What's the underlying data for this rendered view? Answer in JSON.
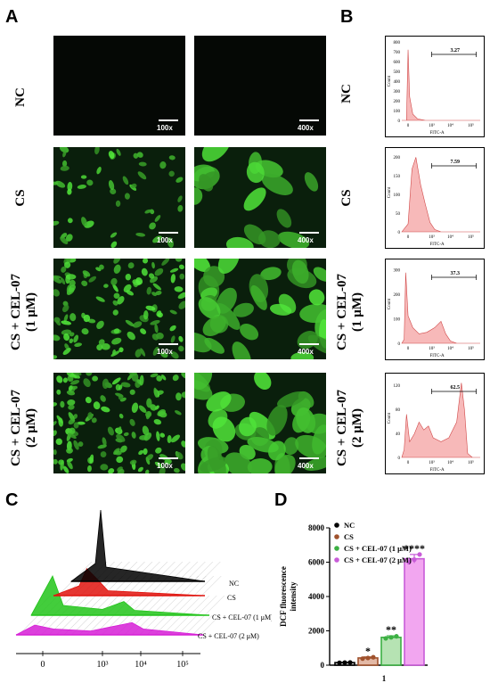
{
  "panels": {
    "a": "A",
    "b": "B",
    "c": "C",
    "d": "D"
  },
  "panel_a": {
    "rows": [
      "NC",
      "CS",
      "CS + CEL-07\n(1 μM)",
      "CS + CEL-07\n(2 μM)"
    ],
    "mag_low": "100x",
    "mag_high": "400x",
    "colors": {
      "fluorescence": "#3fb53a",
      "background": "#07180a"
    }
  },
  "chart_data": [
    {
      "type": "area",
      "title": "",
      "panel": "B",
      "plots": [
        {
          "row": "NC",
          "gate_value": "3.27",
          "ytick_labels": [
            "0",
            "100",
            "200",
            "300",
            "400",
            "500",
            "600",
            "700",
            "800"
          ],
          "ylim": [
            0,
            800
          ],
          "ylabel": "Count",
          "xlabel": "FITC-A",
          "xtick_labels": [
            "0",
            "10³",
            "10⁴",
            "10⁵"
          ],
          "fill": "#f08080"
        },
        {
          "row": "CS",
          "gate_value": "7.59",
          "ytick_labels": [
            "0",
            "50",
            "100",
            "150",
            "200"
          ],
          "ylim": [
            0,
            210
          ],
          "ylabel": "Count",
          "xlabel": "FITC-A",
          "xtick_labels": [
            "0",
            "10³",
            "10⁴",
            "10⁵"
          ],
          "fill": "#f08080"
        },
        {
          "row": "CS + CEL-07 (1 μM)",
          "gate_value": "37.3",
          "ytick_labels": [
            "0",
            "100",
            "200",
            "300"
          ],
          "ylim": [
            0,
            320
          ],
          "ylabel": "Count",
          "xlabel": "FITC-A",
          "xtick_labels": [
            "0",
            "10³",
            "10⁴",
            "10⁵"
          ],
          "fill": "#f08080"
        },
        {
          "row": "CS + CEL-07 (2 μM)",
          "gate_value": "62.5",
          "ytick_labels": [
            "0",
            "40",
            "80",
            "120"
          ],
          "ylim": [
            0,
            130
          ],
          "ylabel": "Count",
          "xlabel": "FITC-A",
          "xtick_labels": [
            "0",
            "10³",
            "10⁴",
            "10⁵"
          ],
          "fill": "#f08080"
        }
      ]
    },
    {
      "type": "area",
      "panel": "C",
      "series": [
        {
          "name": "NC",
          "color": "#000000"
        },
        {
          "name": "CS",
          "color": "#e0140e"
        },
        {
          "name": "CS + CEL-07 (1 μM)",
          "color": "#22c41a"
        },
        {
          "name": "CS + CEL-07  (2 μM)",
          "color": "#d61fd6"
        }
      ],
      "xtick_labels": [
        "0",
        "10³",
        "10⁴",
        "10⁵"
      ]
    },
    {
      "type": "bar",
      "panel": "D",
      "categories": [
        "NC",
        "CS",
        "CS + CEL-07 (1 μM)",
        "CS + CEL-07 (2 μM)"
      ],
      "values": [
        150,
        420,
        1620,
        6200
      ],
      "errors": [
        20,
        60,
        90,
        250
      ],
      "points": [
        [
          140,
          150,
          160
        ],
        [
          380,
          420,
          460
        ],
        [
          1560,
          1620,
          1680
        ],
        [
          6000,
          6150,
          6450
        ]
      ],
      "significance": [
        "",
        "*",
        "**",
        "****"
      ],
      "colors": [
        "#000000",
        "#a0522d",
        "#3cb043",
        "#c85cd8"
      ],
      "fills": [
        "#cfcfcf",
        "#e3b9a6",
        "#b6e3b3",
        "#f2a6f0"
      ],
      "ylabel": "DCF fluorescence intensity",
      "xlabel": "1",
      "ylim": [
        0,
        8000
      ],
      "ytick_labels": [
        "0",
        "2000",
        "4000",
        "6000",
        "8000"
      ],
      "legend_position": "top-left"
    }
  ]
}
